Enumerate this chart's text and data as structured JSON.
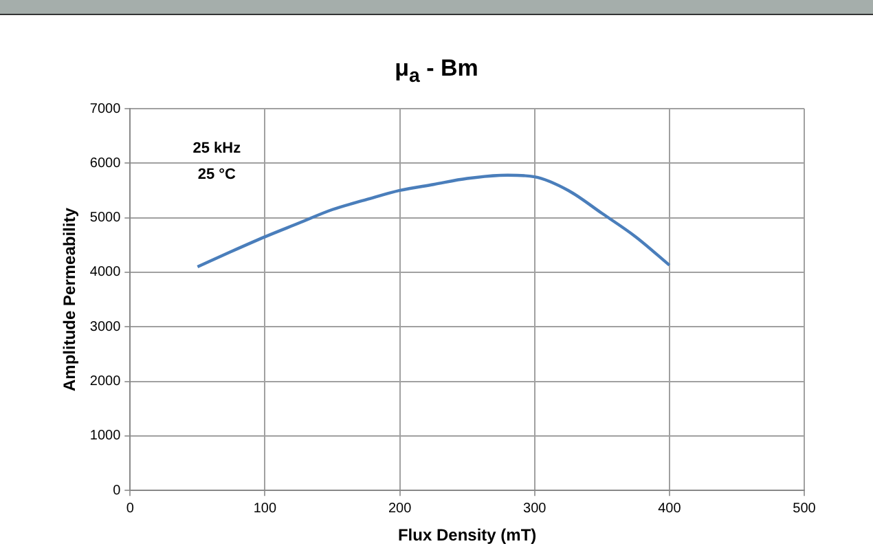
{
  "chart_data": {
    "type": "line",
    "title": "μ$_{a}$ - Bm",
    "xlabel": "Flux Density (mT)",
    "ylabel": "Amplitude Permeability",
    "annotations": [
      "25 kHz",
      "25 °C"
    ],
    "x": [
      50,
      75,
      100,
      125,
      150,
      175,
      200,
      225,
      250,
      280,
      300,
      325,
      350,
      375,
      400
    ],
    "series": [
      {
        "color": "#4a7ebb",
        "values": [
          4100,
          4380,
          4650,
          4900,
          5150,
          5330,
          5500,
          5610,
          5720,
          5780,
          5750,
          5500,
          5080,
          4650,
          4130
        ]
      }
    ],
    "xlim": [
      0,
      500
    ],
    "xticks": [
      0,
      100,
      200,
      300,
      400,
      500
    ],
    "ylim": [
      0,
      7000
    ],
    "yticks": [
      0,
      1000,
      2000,
      3000,
      4000,
      5000,
      6000,
      7000
    ],
    "grid": true,
    "legend": false,
    "marker": "none",
    "line_style": "solid"
  }
}
